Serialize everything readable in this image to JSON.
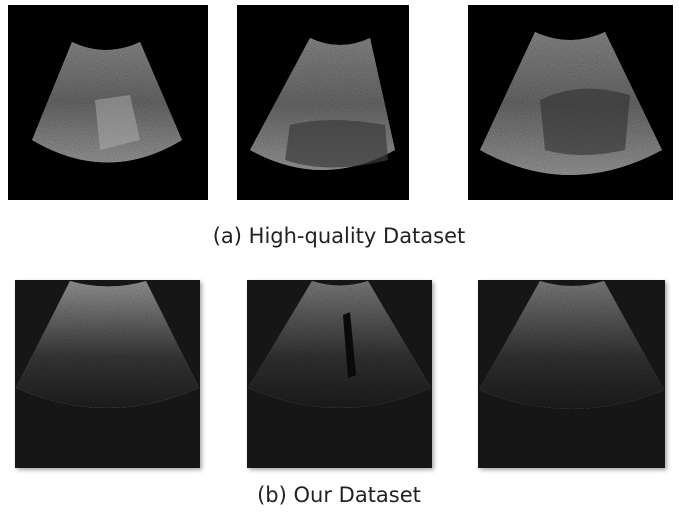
{
  "panels": [
    {
      "caption": "(a) High-quality Dataset"
    },
    {
      "caption": "(b) Our Dataset"
    }
  ]
}
